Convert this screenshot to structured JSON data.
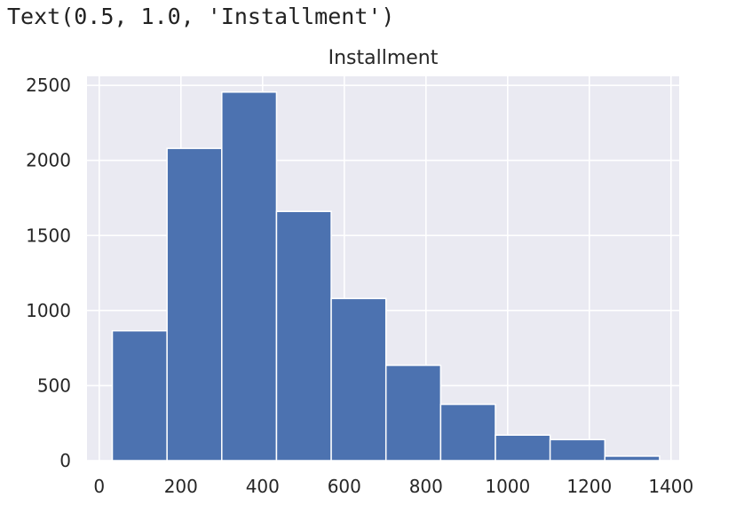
{
  "output_text": "Text(0.5, 1.0, 'Installment')",
  "chart_data": {
    "type": "bar",
    "title": "Installment",
    "xlabel": "",
    "ylabel": "",
    "grid": true,
    "xlim": [
      -30,
      1420
    ],
    "ylim": [
      0,
      2560
    ],
    "x_ticks": [
      0,
      200,
      400,
      600,
      800,
      1000,
      1200,
      1400
    ],
    "y_ticks": [
      0,
      500,
      1000,
      1500,
      2000,
      2500
    ],
    "bin_edges": [
      32,
      166,
      300,
      434,
      568,
      702,
      836,
      970,
      1104,
      1238,
      1372
    ],
    "values": [
      865,
      2080,
      2455,
      1660,
      1080,
      635,
      375,
      170,
      140,
      30
    ],
    "colors": {
      "bar": "#4c72b0",
      "background": "#eaeaf2",
      "grid": "#ffffff"
    }
  }
}
